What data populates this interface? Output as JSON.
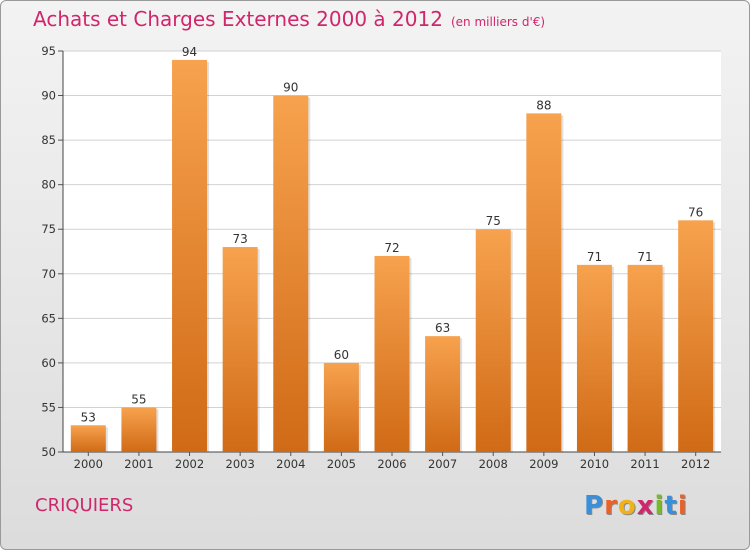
{
  "header": {
    "title": "Achats et Charges Externes 2000 à 2012",
    "unit": "(en milliers d'€)"
  },
  "footer": {
    "commune": "CRIQUIERS",
    "logo": [
      "P",
      "r",
      "o",
      "x",
      "i",
      "t",
      "i"
    ]
  },
  "colors": {
    "title": "#d0266c",
    "bar_top": "#f7a24e",
    "bar_bottom": "#d06a16",
    "logo": [
      "#3a8fd8",
      "#e9622a",
      "#f0b21a",
      "#d0266c",
      "#78b82a",
      "#3a8fd8",
      "#e9622a"
    ]
  },
  "chart_data": {
    "type": "bar",
    "title": "Achats et Charges Externes 2000 à 2012",
    "subtitle": "(en milliers d'€)",
    "categories": [
      "2000",
      "2001",
      "2002",
      "2003",
      "2004",
      "2005",
      "2006",
      "2007",
      "2008",
      "2009",
      "2010",
      "2011",
      "2012"
    ],
    "values": [
      53,
      55,
      94,
      73,
      90,
      60,
      72,
      63,
      75,
      88,
      71,
      71,
      76
    ],
    "xlabel": "",
    "ylabel": "",
    "ylim": [
      50,
      95
    ],
    "yticks": [
      50,
      55,
      60,
      65,
      70,
      75,
      80,
      85,
      90,
      95
    ],
    "grid": true
  }
}
